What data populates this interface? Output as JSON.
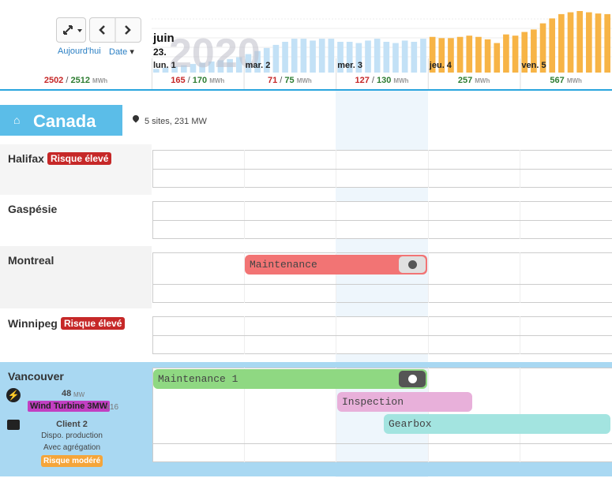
{
  "toolbar": {
    "today": "Aujourd'hui",
    "date": "Date"
  },
  "header": {
    "month": "juin",
    "day": "23.",
    "year": "2020",
    "days": [
      "lun. 1",
      "mar. 2",
      "mer. 3",
      "jeu. 4",
      "ven. 5"
    ],
    "separator": "/",
    "unit": "MWh",
    "total": {
      "planned": 2502,
      "actual": 2512
    },
    "day_totals": [
      {
        "planned": 165,
        "actual": 170
      },
      {
        "planned": 71,
        "actual": 75
      },
      {
        "planned": 127,
        "actual": 130
      },
      {
        "actual": 257
      },
      {
        "actual": 567
      }
    ]
  },
  "load_chart": {
    "type": "bar",
    "ylim": [
      0,
      100
    ],
    "series": [
      {
        "color": "#c3e1f6",
        "values": [
          6,
          8,
          10,
          12,
          14,
          16,
          18,
          20,
          22,
          25,
          30,
          35,
          40,
          45,
          50,
          55,
          55,
          52,
          55,
          55,
          50,
          50,
          48,
          52,
          55,
          50,
          48,
          52,
          50,
          55
        ]
      },
      {
        "color": "#f7b446",
        "values": [
          58,
          56,
          56,
          58,
          60,
          58,
          54,
          48,
          62,
          60,
          66,
          70,
          80,
          88,
          95,
          98,
          100,
          98,
          96,
          95
        ]
      }
    ]
  },
  "region": {
    "name": "Canada",
    "info": "5 sites, 231 MW"
  },
  "sites": [
    {
      "name": "Halifax",
      "badge": "Risque élevé"
    },
    {
      "name": "Gaspésie"
    },
    {
      "name": "Montreal",
      "events": [
        {
          "label": "Maintenance"
        }
      ]
    },
    {
      "name": "Winnipeg",
      "badge": "Risque élevé"
    },
    {
      "name": "Vancouver",
      "capacity": 48,
      "unit": "MW",
      "turbine": "Wind Turbine 3MW",
      "count": "x16",
      "client": "Client 2",
      "mode": "Dispo. production",
      "aggregation": "Avec agrégation",
      "risk": "Risque modéré",
      "events": [
        {
          "label": "Maintenance 1"
        },
        {
          "label": "Inspection"
        },
        {
          "label": "Gearbox"
        }
      ]
    }
  ]
}
